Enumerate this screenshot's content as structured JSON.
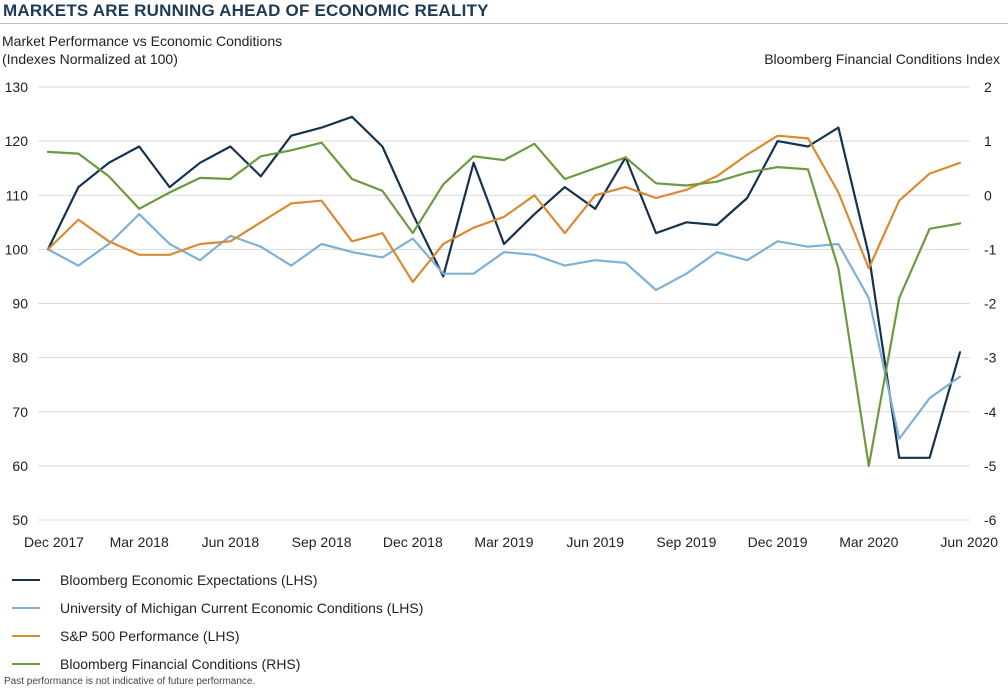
{
  "title": "MARKETS ARE RUNNING AHEAD OF ECONOMIC REALITY",
  "subtitle_line1": "Market Performance vs Economic Conditions",
  "subtitle_line2": "(Indexes Normalized at 100)",
  "right_axis_title": "Bloomberg Financial Conditions Index",
  "footnote": "Past performance is not indicative of future performance.",
  "chart_data": {
    "type": "line",
    "x_labels": [
      "Dec 2017",
      "Mar 2018",
      "Jun 2018",
      "Sep 2018",
      "Dec 2018",
      "Mar 2019",
      "Jun 2019",
      "Sep 2019",
      "Dec 2019",
      "Mar 2020",
      "Jun 2020"
    ],
    "x": [
      "Dec 2017",
      "Jan 2018",
      "Feb 2018",
      "Mar 2018",
      "Apr 2018",
      "May 2018",
      "Jun 2018",
      "Jul 2018",
      "Aug 2018",
      "Sep 2018",
      "Oct 2018",
      "Nov 2018",
      "Dec 2018",
      "Jan 2019",
      "Feb 2019",
      "Mar 2019",
      "Apr 2019",
      "May 2019",
      "Jun 2019",
      "Jul 2019",
      "Aug 2019",
      "Sep 2019",
      "Oct 2019",
      "Nov 2019",
      "Dec 2019",
      "Jan 2020",
      "Feb 2020",
      "Mar 2020",
      "Apr 2020",
      "May 2020",
      "Jun 2020"
    ],
    "left_axis": {
      "range": [
        50,
        130
      ],
      "ticks": [
        50,
        60,
        70,
        80,
        90,
        100,
        110,
        120,
        130
      ]
    },
    "right_axis": {
      "range": [
        -6,
        2
      ],
      "ticks": [
        -6,
        -5,
        -4,
        -3,
        -2,
        -1,
        0,
        1,
        2
      ]
    },
    "grid": true,
    "legend_position": "bottom-left",
    "series": [
      {
        "name": "Bloomberg Economic Expectations (LHS)",
        "axis": "left",
        "color": "#14324f",
        "values": [
          100,
          111.5,
          116,
          119,
          111.5,
          116,
          119,
          113.5,
          121,
          122.5,
          124.5,
          119,
          106.5,
          95,
          116,
          101,
          106.5,
          111.5,
          107.5,
          117,
          103,
          105,
          104.5,
          109.5,
          120,
          119,
          122.5,
          99,
          61.5,
          61.5,
          81
        ]
      },
      {
        "name": "University of Michigan Current Economic Conditions (LHS)",
        "axis": "left",
        "color": "#7fb0d6",
        "values": [
          100,
          97,
          101,
          106.5,
          101,
          98,
          102.5,
          100.5,
          97,
          101,
          99.5,
          98.5,
          102,
          95.5,
          95.5,
          99.5,
          99,
          97,
          98,
          97.5,
          92.5,
          95.5,
          99.5,
          98,
          101.5,
          100.5,
          101,
          91,
          65,
          72.5,
          76.5
        ]
      },
      {
        "name": "S&P 500 Performance (LHS)",
        "axis": "left",
        "color": "#d98a32",
        "values": [
          100,
          105.5,
          101.5,
          99,
          99,
          101,
          101.5,
          105,
          108.5,
          109,
          101.5,
          103,
          94,
          101,
          104,
          106,
          110,
          103,
          110,
          111.5,
          109.5,
          111,
          113.5,
          117.5,
          121,
          120.5,
          110.5,
          96.5,
          109,
          114,
          116
        ]
      },
      {
        "name": "Bloomberg Financial Conditions (RHS)",
        "axis": "right",
        "color": "#6c9a40",
        "values": [
          0.8,
          0.77,
          0.35,
          -0.25,
          0.05,
          0.32,
          0.3,
          0.72,
          0.83,
          0.97,
          0.3,
          0.08,
          -0.7,
          0.2,
          0.72,
          0.65,
          0.95,
          0.3,
          0.5,
          0.7,
          0.22,
          0.18,
          0.25,
          0.42,
          0.52,
          0.48,
          -1.35,
          -5.0,
          -1.9,
          -0.62,
          -0.52
        ]
      }
    ]
  }
}
